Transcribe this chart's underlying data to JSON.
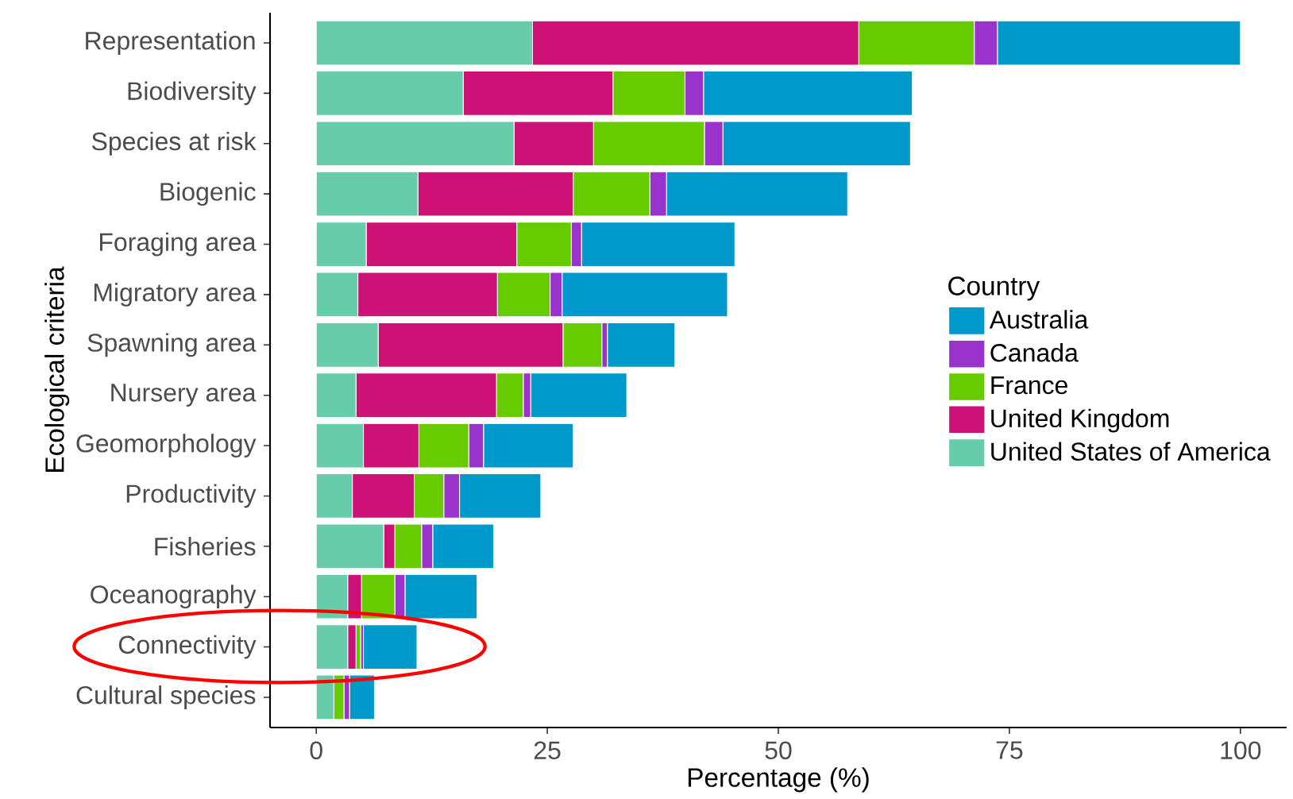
{
  "chart_data": {
    "type": "bar",
    "orientation": "horizontal",
    "stacked": true,
    "xlabel": "Percentage (%)",
    "ylabel": "Ecological criteria",
    "legend_title": "Country",
    "legend": "right",
    "categories": [
      "Representation",
      "Biodiversity",
      "Species at risk",
      "Biogenic",
      "Foraging area",
      "Migratory area",
      "Spawning area",
      "Nursery area",
      "Geomorphology",
      "Productivity",
      "Fisheries",
      "Oceanography",
      "Connectivity",
      "Cultural species"
    ],
    "series": [
      {
        "name": "United States of America",
        "color": "#66ccaa",
        "values": [
          23.4,
          15.9,
          21.4,
          11.0,
          5.4,
          4.5,
          6.7,
          4.3,
          5.1,
          3.9,
          7.3,
          3.4,
          3.4,
          1.9
        ]
      },
      {
        "name": "United Kingdom",
        "color": "#cc1177",
        "values": [
          35.3,
          16.2,
          8.6,
          16.8,
          16.3,
          15.1,
          20.0,
          15.2,
          6.0,
          6.7,
          1.2,
          1.5,
          0.9,
          0
        ]
      },
      {
        "name": "France",
        "color": "#66cc00",
        "values": [
          12.5,
          7.8,
          12.0,
          8.3,
          5.9,
          5.7,
          4.2,
          2.9,
          5.4,
          3.2,
          2.9,
          3.6,
          0.5,
          1.1
        ]
      },
      {
        "name": "Canada",
        "color": "#9933cc",
        "values": [
          2.5,
          2.0,
          2.0,
          1.8,
          1.1,
          1.3,
          0.6,
          0.8,
          1.6,
          1.7,
          1.2,
          1.1,
          0.3,
          0.6
        ]
      },
      {
        "name": "Australia",
        "color": "#0099cc",
        "values": [
          26.3,
          22.6,
          20.3,
          19.6,
          16.6,
          17.9,
          7.3,
          10.4,
          9.7,
          8.8,
          6.6,
          7.8,
          5.8,
          2.7
        ]
      }
    ],
    "xlim": [
      -5,
      105
    ],
    "xticks": [
      0,
      25,
      50,
      75,
      100
    ],
    "grid": false
  }
}
